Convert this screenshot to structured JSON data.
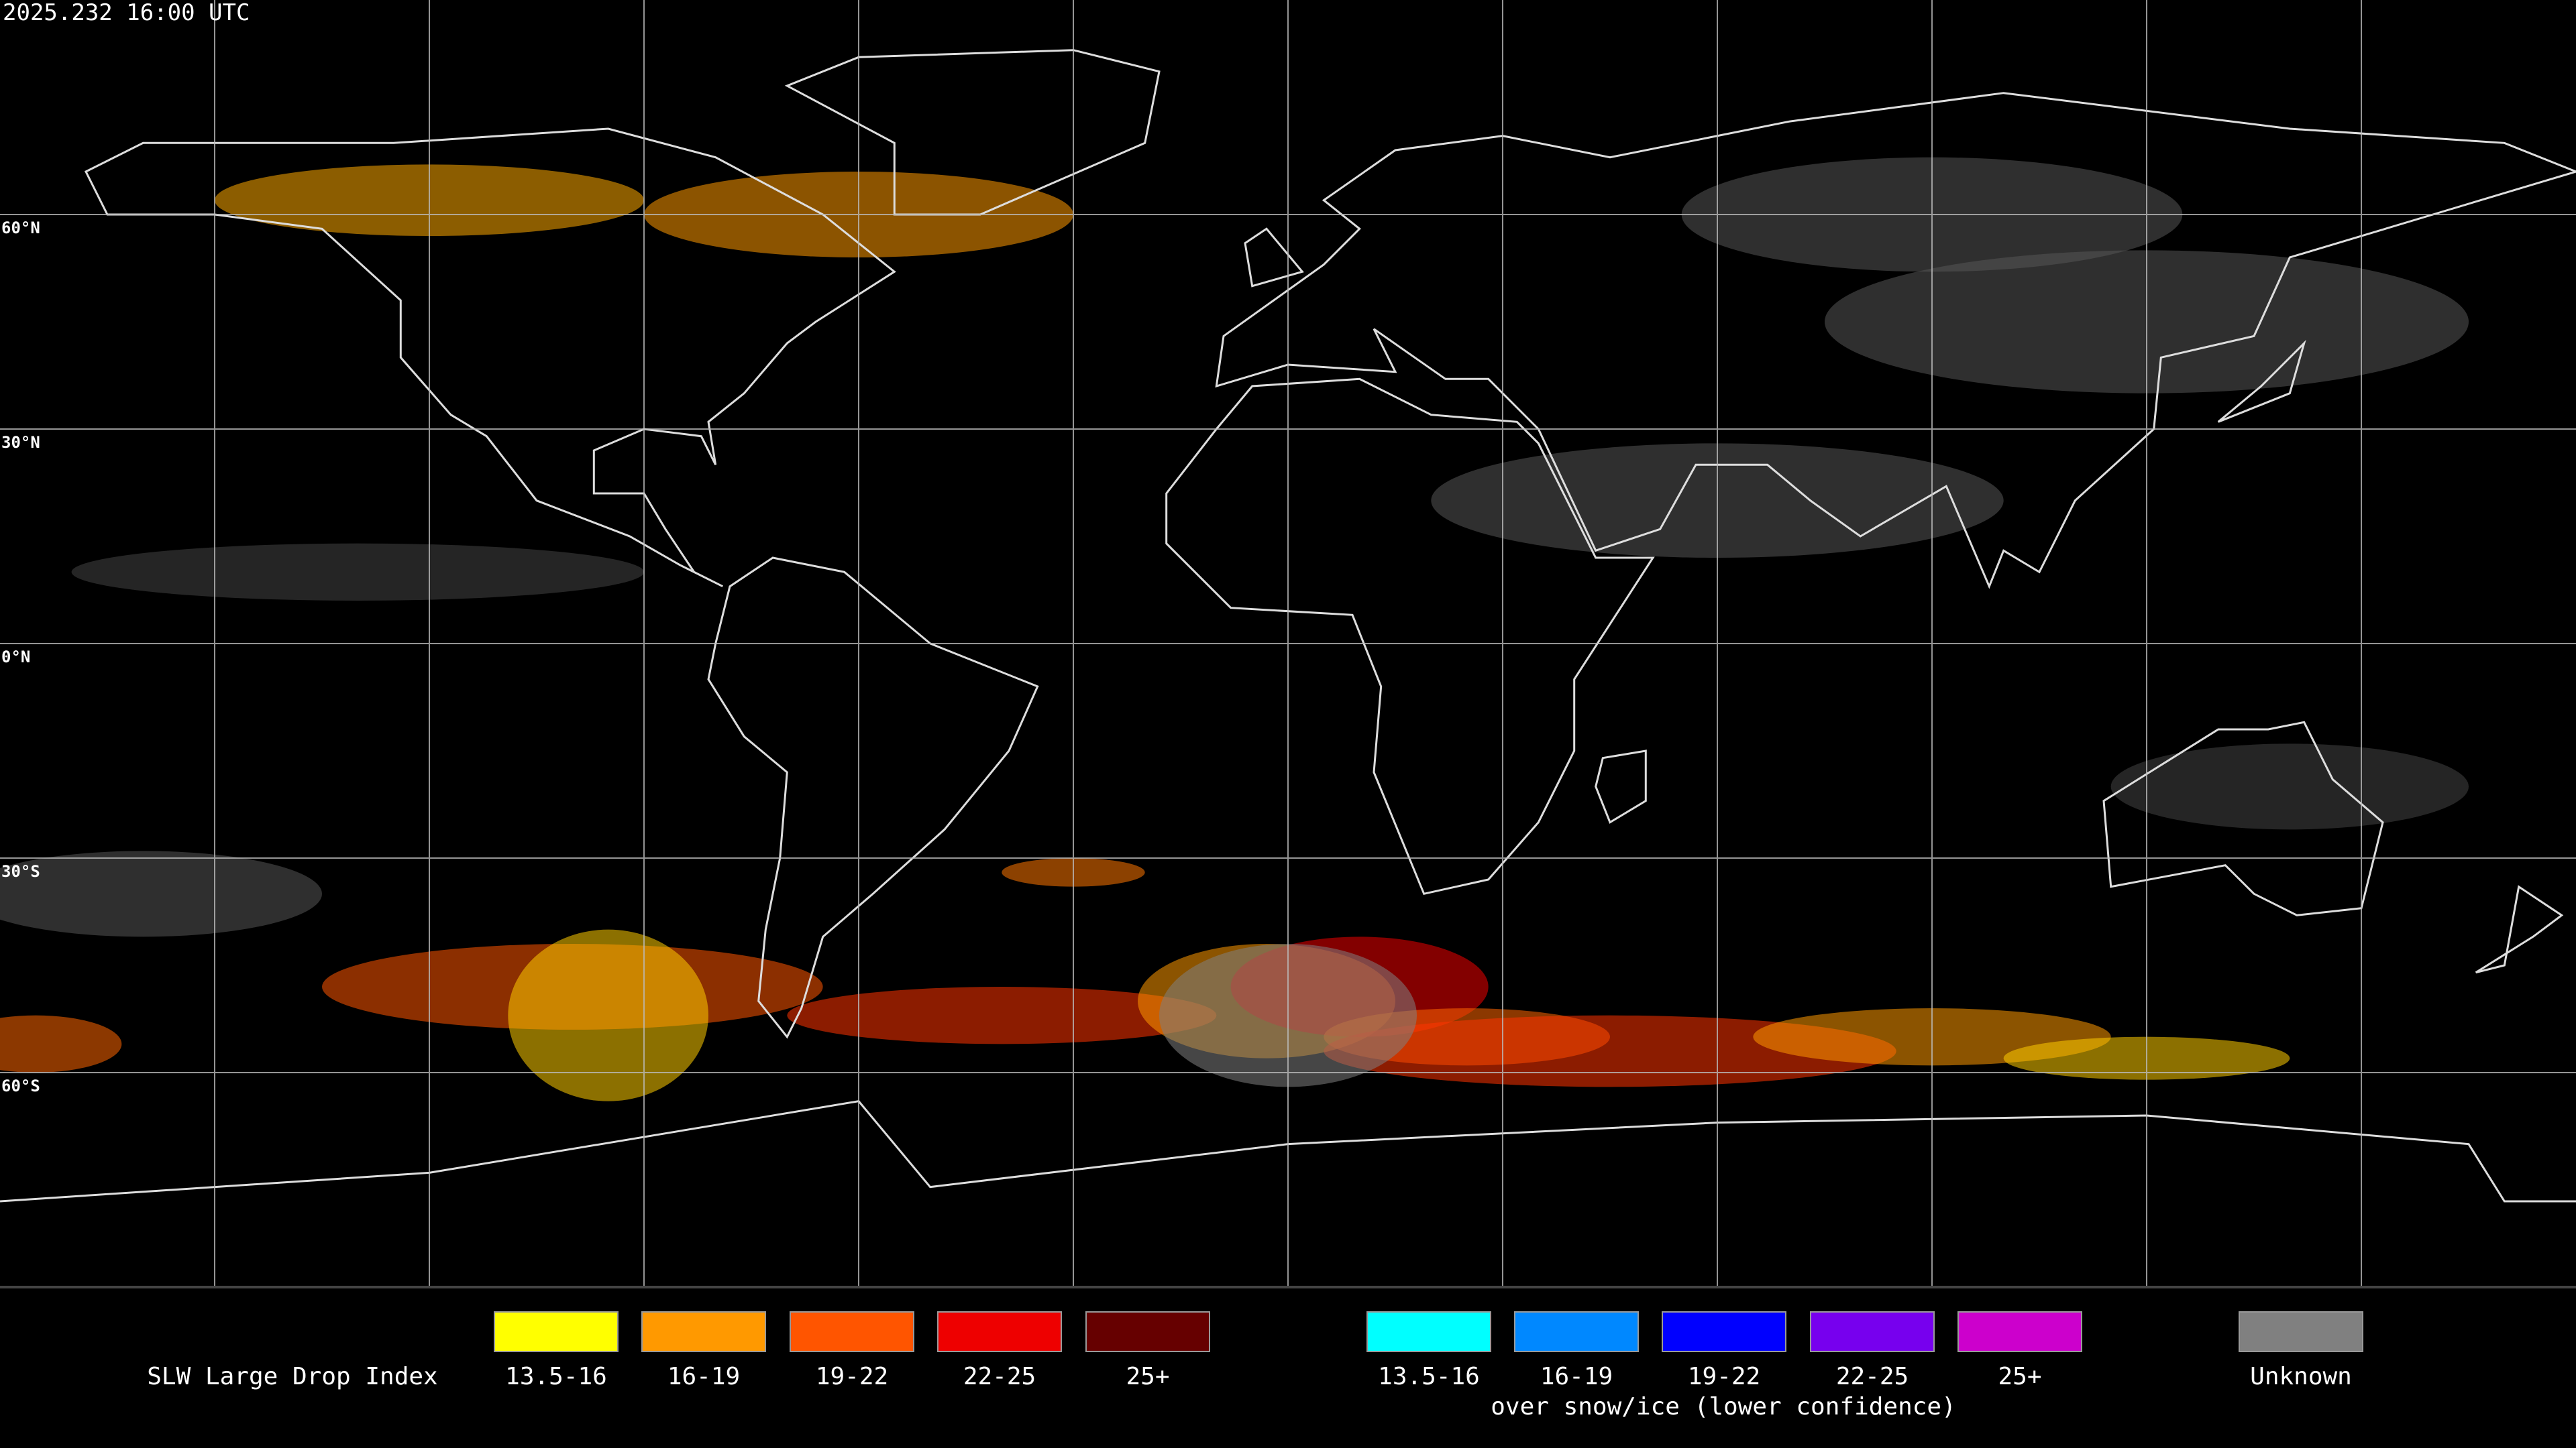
{
  "header": {
    "timestamp": "2025.232 16:00 UTC"
  },
  "map": {
    "lat_labels": [
      "60°N",
      "30°N",
      "0°N",
      "30°S",
      "60°S"
    ]
  },
  "legend": {
    "title": "SLW Large Drop Index",
    "items": [
      {
        "label": "13.5-16",
        "color": "#ffff00"
      },
      {
        "label": "16-19",
        "color": "#ff9900"
      },
      {
        "label": "19-22",
        "color": "#ff5500"
      },
      {
        "label": "22-25",
        "color": "#ee0000"
      },
      {
        "label": "25+",
        "color": "#660000"
      },
      {
        "label": "13.5-16",
        "color": "#00ffff"
      },
      {
        "label": "16-19",
        "color": "#0088ff"
      },
      {
        "label": "19-22",
        "color": "#0000ff"
      },
      {
        "label": "22-25",
        "color": "#7700ee"
      },
      {
        "label": "25+",
        "color": "#cc00cc"
      },
      {
        "label": "Unknown",
        "color": "#808080"
      }
    ],
    "snow_note": "over snow/ice (lower confidence)"
  }
}
